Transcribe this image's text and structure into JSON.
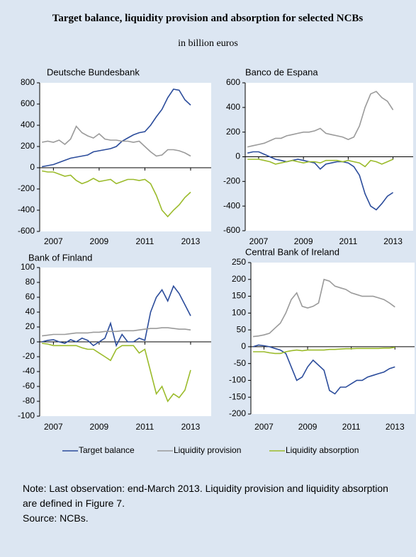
{
  "header": {
    "title": "Target balance, liquidity provision and absorption for selected NCBs",
    "subtitle": "in billion euros"
  },
  "chart_data": [
    {
      "type": "line",
      "title": "Deutsche Bundesbank",
      "x": [
        2006.5,
        2006.75,
        2007,
        2007.25,
        2007.5,
        2007.75,
        2008,
        2008.25,
        2008.5,
        2008.75,
        2009,
        2009.25,
        2009.5,
        2009.75,
        2010,
        2010.25,
        2010.5,
        2010.75,
        2011,
        2011.25,
        2011.5,
        2011.75,
        2012,
        2012.25,
        2012.5,
        2012.75,
        2013
      ],
      "xlim": [
        2006.4,
        2013.9
      ],
      "xticks": [
        2007,
        2009,
        2011,
        2013
      ],
      "ylim": [
        -600,
        800
      ],
      "yticks": [
        -600,
        -400,
        -200,
        0,
        200,
        400,
        600,
        800
      ],
      "series": [
        {
          "name": "Target balance",
          "color": "#2b4c9b",
          "values": [
            10,
            20,
            30,
            50,
            70,
            90,
            100,
            110,
            120,
            150,
            160,
            170,
            180,
            200,
            250,
            280,
            310,
            330,
            340,
            400,
            480,
            550,
            660,
            740,
            730,
            640,
            590
          ]
        },
        {
          "name": "Liquidity provision",
          "color": "#9a9a9a",
          "values": [
            240,
            250,
            240,
            260,
            220,
            270,
            390,
            330,
            300,
            280,
            320,
            270,
            260,
            260,
            250,
            250,
            240,
            250,
            200,
            150,
            110,
            120,
            170,
            170,
            160,
            140,
            110
          ]
        },
        {
          "name": "Liquidity absorption",
          "color": "#9bbb2b",
          "values": [
            -30,
            -40,
            -40,
            -60,
            -80,
            -70,
            -120,
            -150,
            -130,
            -100,
            -130,
            -120,
            -110,
            -150,
            -130,
            -110,
            -110,
            -120,
            -110,
            -150,
            -260,
            -400,
            -460,
            -400,
            -350,
            -280,
            -230
          ]
        }
      ]
    },
    {
      "type": "line",
      "title": "Banco de Espana",
      "x": [
        2006.5,
        2006.75,
        2007,
        2007.25,
        2007.5,
        2007.75,
        2008,
        2008.25,
        2008.5,
        2008.75,
        2009,
        2009.25,
        2009.5,
        2009.75,
        2010,
        2010.25,
        2010.5,
        2010.75,
        2011,
        2011.25,
        2011.5,
        2011.75,
        2012,
        2012.25,
        2012.5,
        2012.75,
        2013
      ],
      "xlim": [
        2006.4,
        2013.9
      ],
      "xticks": [
        2007,
        2009,
        2011,
        2013
      ],
      "ylim": [
        -600,
        600
      ],
      "yticks": [
        -600,
        -400,
        -200,
        0,
        200,
        400,
        600
      ],
      "series": [
        {
          "name": "Target balance",
          "color": "#2b4c9b",
          "values": [
            30,
            40,
            40,
            20,
            0,
            -20,
            -30,
            -40,
            -30,
            -20,
            -30,
            -40,
            -50,
            -100,
            -60,
            -50,
            -40,
            -40,
            -50,
            -80,
            -150,
            -300,
            -400,
            -430,
            -380,
            -320,
            -290
          ]
        },
        {
          "name": "Liquidity provision",
          "color": "#9a9a9a",
          "values": [
            80,
            90,
            100,
            110,
            130,
            150,
            150,
            170,
            180,
            190,
            200,
            200,
            210,
            230,
            190,
            180,
            170,
            160,
            140,
            160,
            250,
            400,
            510,
            530,
            480,
            450,
            380
          ]
        },
        {
          "name": "Liquidity absorption",
          "color": "#9bbb2b",
          "values": [
            -20,
            -20,
            -20,
            -30,
            -40,
            -60,
            -50,
            -40,
            -30,
            -40,
            -50,
            -40,
            -40,
            -50,
            -30,
            -30,
            -30,
            -40,
            -30,
            -40,
            -50,
            -80,
            -30,
            -40,
            -60,
            -40,
            -20
          ]
        }
      ]
    },
    {
      "type": "line",
      "title": "Bank of Finland",
      "x": [
        2006.5,
        2006.75,
        2007,
        2007.25,
        2007.5,
        2007.75,
        2008,
        2008.25,
        2008.5,
        2008.75,
        2009,
        2009.25,
        2009.5,
        2009.75,
        2010,
        2010.25,
        2010.5,
        2010.75,
        2011,
        2011.25,
        2011.5,
        2011.75,
        2012,
        2012.25,
        2012.5,
        2012.75,
        2013
      ],
      "xlim": [
        2006.4,
        2013.9
      ],
      "xticks": [
        2007,
        2009,
        2011,
        2013
      ],
      "ylim": [
        -100,
        100
      ],
      "yticks": [
        -100,
        -80,
        -60,
        -40,
        -20,
        0,
        20,
        40,
        60,
        80,
        100
      ],
      "series": [
        {
          "name": "Target balance",
          "color": "#2b4c9b",
          "values": [
            0,
            2,
            3,
            0,
            -2,
            3,
            0,
            5,
            2,
            -5,
            0,
            5,
            25,
            -5,
            10,
            0,
            0,
            5,
            2,
            40,
            60,
            70,
            55,
            75,
            65,
            50,
            35
          ]
        },
        {
          "name": "Liquidity provision",
          "color": "#9a9a9a",
          "values": [
            8,
            9,
            10,
            10,
            10,
            11,
            12,
            12,
            12,
            13,
            13,
            14,
            14,
            14,
            15,
            15,
            15,
            16,
            17,
            18,
            18,
            19,
            19,
            18,
            17,
            17,
            16
          ]
        },
        {
          "name": "Liquidity absorption",
          "color": "#9bbb2b",
          "values": [
            -2,
            -3,
            -5,
            -5,
            -5,
            -5,
            -5,
            -8,
            -10,
            -10,
            -15,
            -20,
            -25,
            -10,
            -5,
            -5,
            -5,
            -15,
            -10,
            -40,
            -70,
            -60,
            -80,
            -70,
            -75,
            -65,
            -38
          ]
        }
      ]
    },
    {
      "type": "line",
      "title": "Central Bank of Ireland",
      "x": [
        2006.5,
        2006.75,
        2007,
        2007.25,
        2007.5,
        2007.75,
        2008,
        2008.25,
        2008.5,
        2008.75,
        2009,
        2009.25,
        2009.5,
        2009.75,
        2010,
        2010.25,
        2010.5,
        2010.75,
        2011,
        2011.25,
        2011.5,
        2011.75,
        2012,
        2012.25,
        2012.5,
        2012.75,
        2013
      ],
      "xlim": [
        2006.4,
        2013.9
      ],
      "xticks": [
        2007,
        2009,
        2011,
        2013
      ],
      "ylim": [
        -200,
        250
      ],
      "yticks": [
        -200,
        -150,
        -100,
        -50,
        0,
        50,
        100,
        150,
        200,
        250
      ],
      "series": [
        {
          "name": "Target balance",
          "color": "#2b4c9b",
          "values": [
            0,
            5,
            3,
            0,
            -5,
            -10,
            -20,
            -60,
            -100,
            -90,
            -60,
            -40,
            -55,
            -70,
            -130,
            -140,
            -120,
            -120,
            -110,
            -100,
            -100,
            -90,
            -85,
            -80,
            -75,
            -65,
            -60
          ]
        },
        {
          "name": "Liquidity provision",
          "color": "#9a9a9a",
          "values": [
            30,
            32,
            35,
            40,
            55,
            70,
            100,
            140,
            160,
            120,
            115,
            120,
            130,
            200,
            195,
            180,
            175,
            170,
            160,
            155,
            150,
            150,
            150,
            145,
            140,
            130,
            118
          ]
        },
        {
          "name": "Liquidity absorption",
          "color": "#9bbb2b",
          "values": [
            -15,
            -15,
            -15,
            -18,
            -20,
            -20,
            -15,
            -12,
            -10,
            -12,
            -10,
            -10,
            -10,
            -10,
            -8,
            -8,
            -7,
            -6,
            -6,
            -5,
            -5,
            -5,
            -5,
            -5,
            -4,
            -4,
            -2
          ]
        }
      ]
    }
  ],
  "note": "Note: Last observation: end-March 2013. Liquidity provision and liquidity absorption are defined in Figure 7.",
  "source": "Source: NCBs."
}
